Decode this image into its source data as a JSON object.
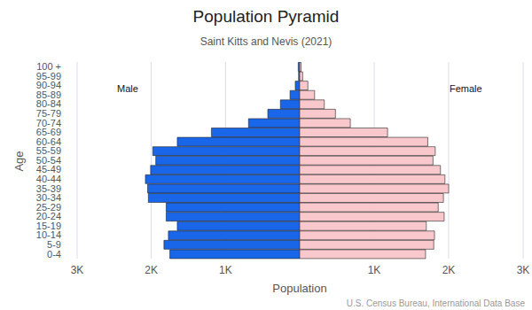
{
  "chart_data": {
    "type": "bar",
    "orientation": "horizontal",
    "title": "Population Pyramid",
    "subtitle": "Saint Kitts and Nevis (2021)",
    "x_label": "Population",
    "y_label": "Age",
    "source": "U.S. Census Bureau, International Data Base",
    "grid": true,
    "categories": [
      "100 +",
      "95-99",
      "90-94",
      "85-89",
      "80-84",
      "75-79",
      "70-74",
      "65-69",
      "60-64",
      "55-59",
      "50-54",
      "45-49",
      "40-44",
      "35-39",
      "30-34",
      "25-29",
      "20-24",
      "15-19",
      "10-14",
      "5-9",
      "0-4"
    ],
    "xlim": [
      0,
      3000
    ],
    "series": [
      {
        "name": "Male",
        "color": "#1a66e8",
        "values": [
          20,
          15,
          60,
          130,
          260,
          430,
          690,
          1190,
          1650,
          1980,
          1940,
          2010,
          2080,
          2050,
          2040,
          1800,
          1800,
          1650,
          1770,
          1830,
          1750
        ],
        "xticks": [
          {
            "value": 1000,
            "label": "1K"
          },
          {
            "value": 2000,
            "label": "2K"
          },
          {
            "value": 3000,
            "label": "3K"
          }
        ]
      },
      {
        "name": "Female",
        "color": "#f8c8cc",
        "values": [
          20,
          40,
          110,
          200,
          330,
          480,
          680,
          1180,
          1720,
          1820,
          1790,
          1890,
          1950,
          2000,
          1930,
          1860,
          1940,
          1700,
          1810,
          1800,
          1690
        ],
        "xticks": [
          0,
          {
            "value": 1000,
            "label": "1K"
          },
          {
            "value": 2000,
            "label": "2K"
          },
          {
            "value": 3000,
            "label": "3K"
          }
        ]
      }
    ]
  }
}
